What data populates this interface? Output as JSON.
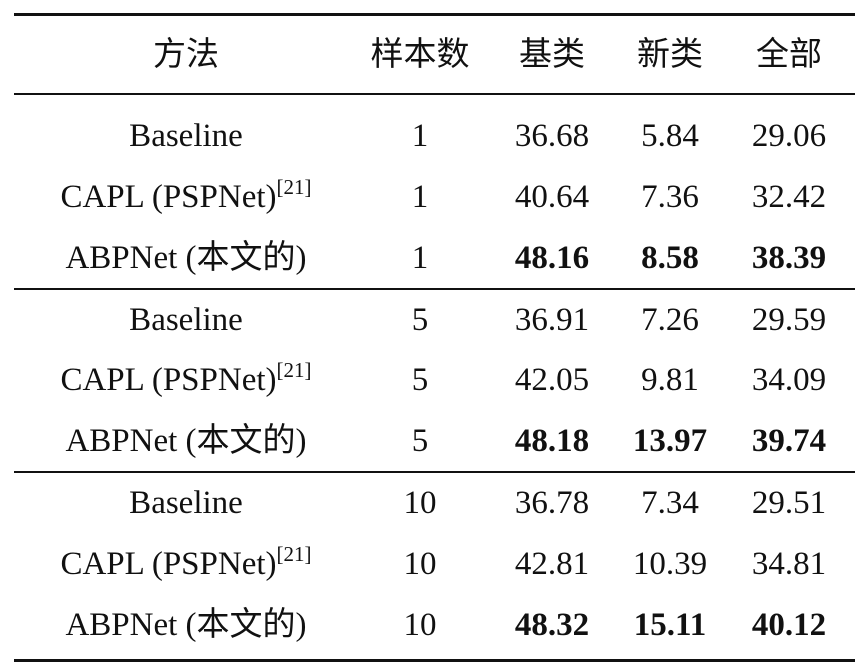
{
  "header": {
    "method": "方法",
    "shots": "样本数",
    "base": "基类",
    "novel": "新类",
    "all": "全部"
  },
  "groups": [
    {
      "rows": [
        {
          "method": "Baseline",
          "ref": "",
          "shots": "1",
          "base": "36.68",
          "novel": "5.84",
          "all": "29.06",
          "bold": false
        },
        {
          "method": "CAPL (PSPNet)",
          "ref": "[21]",
          "shots": "1",
          "base": "40.64",
          "novel": "7.36",
          "all": "32.42",
          "bold": false
        },
        {
          "method": "ABPNet (本文的)",
          "ref": "",
          "shots": "1",
          "base": "48.16",
          "novel": "8.58",
          "all": "38.39",
          "bold": true
        }
      ]
    },
    {
      "rows": [
        {
          "method": "Baseline",
          "ref": "",
          "shots": "5",
          "base": "36.91",
          "novel": "7.26",
          "all": "29.59",
          "bold": false
        },
        {
          "method": "CAPL (PSPNet)",
          "ref": "[21]",
          "shots": "5",
          "base": "42.05",
          "novel": "9.81",
          "all": "34.09",
          "bold": false
        },
        {
          "method": "ABPNet (本文的)",
          "ref": "",
          "shots": "5",
          "base": "48.18",
          "novel": "13.97",
          "all": "39.74",
          "bold": true
        }
      ]
    },
    {
      "rows": [
        {
          "method": "Baseline",
          "ref": "",
          "shots": "10",
          "base": "36.78",
          "novel": "7.34",
          "all": "29.51",
          "bold": false
        },
        {
          "method": "CAPL (PSPNet)",
          "ref": "[21]",
          "shots": "10",
          "base": "42.81",
          "novel": "10.39",
          "all": "34.81",
          "bold": false
        },
        {
          "method": "ABPNet (本文的)",
          "ref": "",
          "shots": "10",
          "base": "48.32",
          "novel": "15.11",
          "all": "40.12",
          "bold": true
        }
      ]
    }
  ]
}
